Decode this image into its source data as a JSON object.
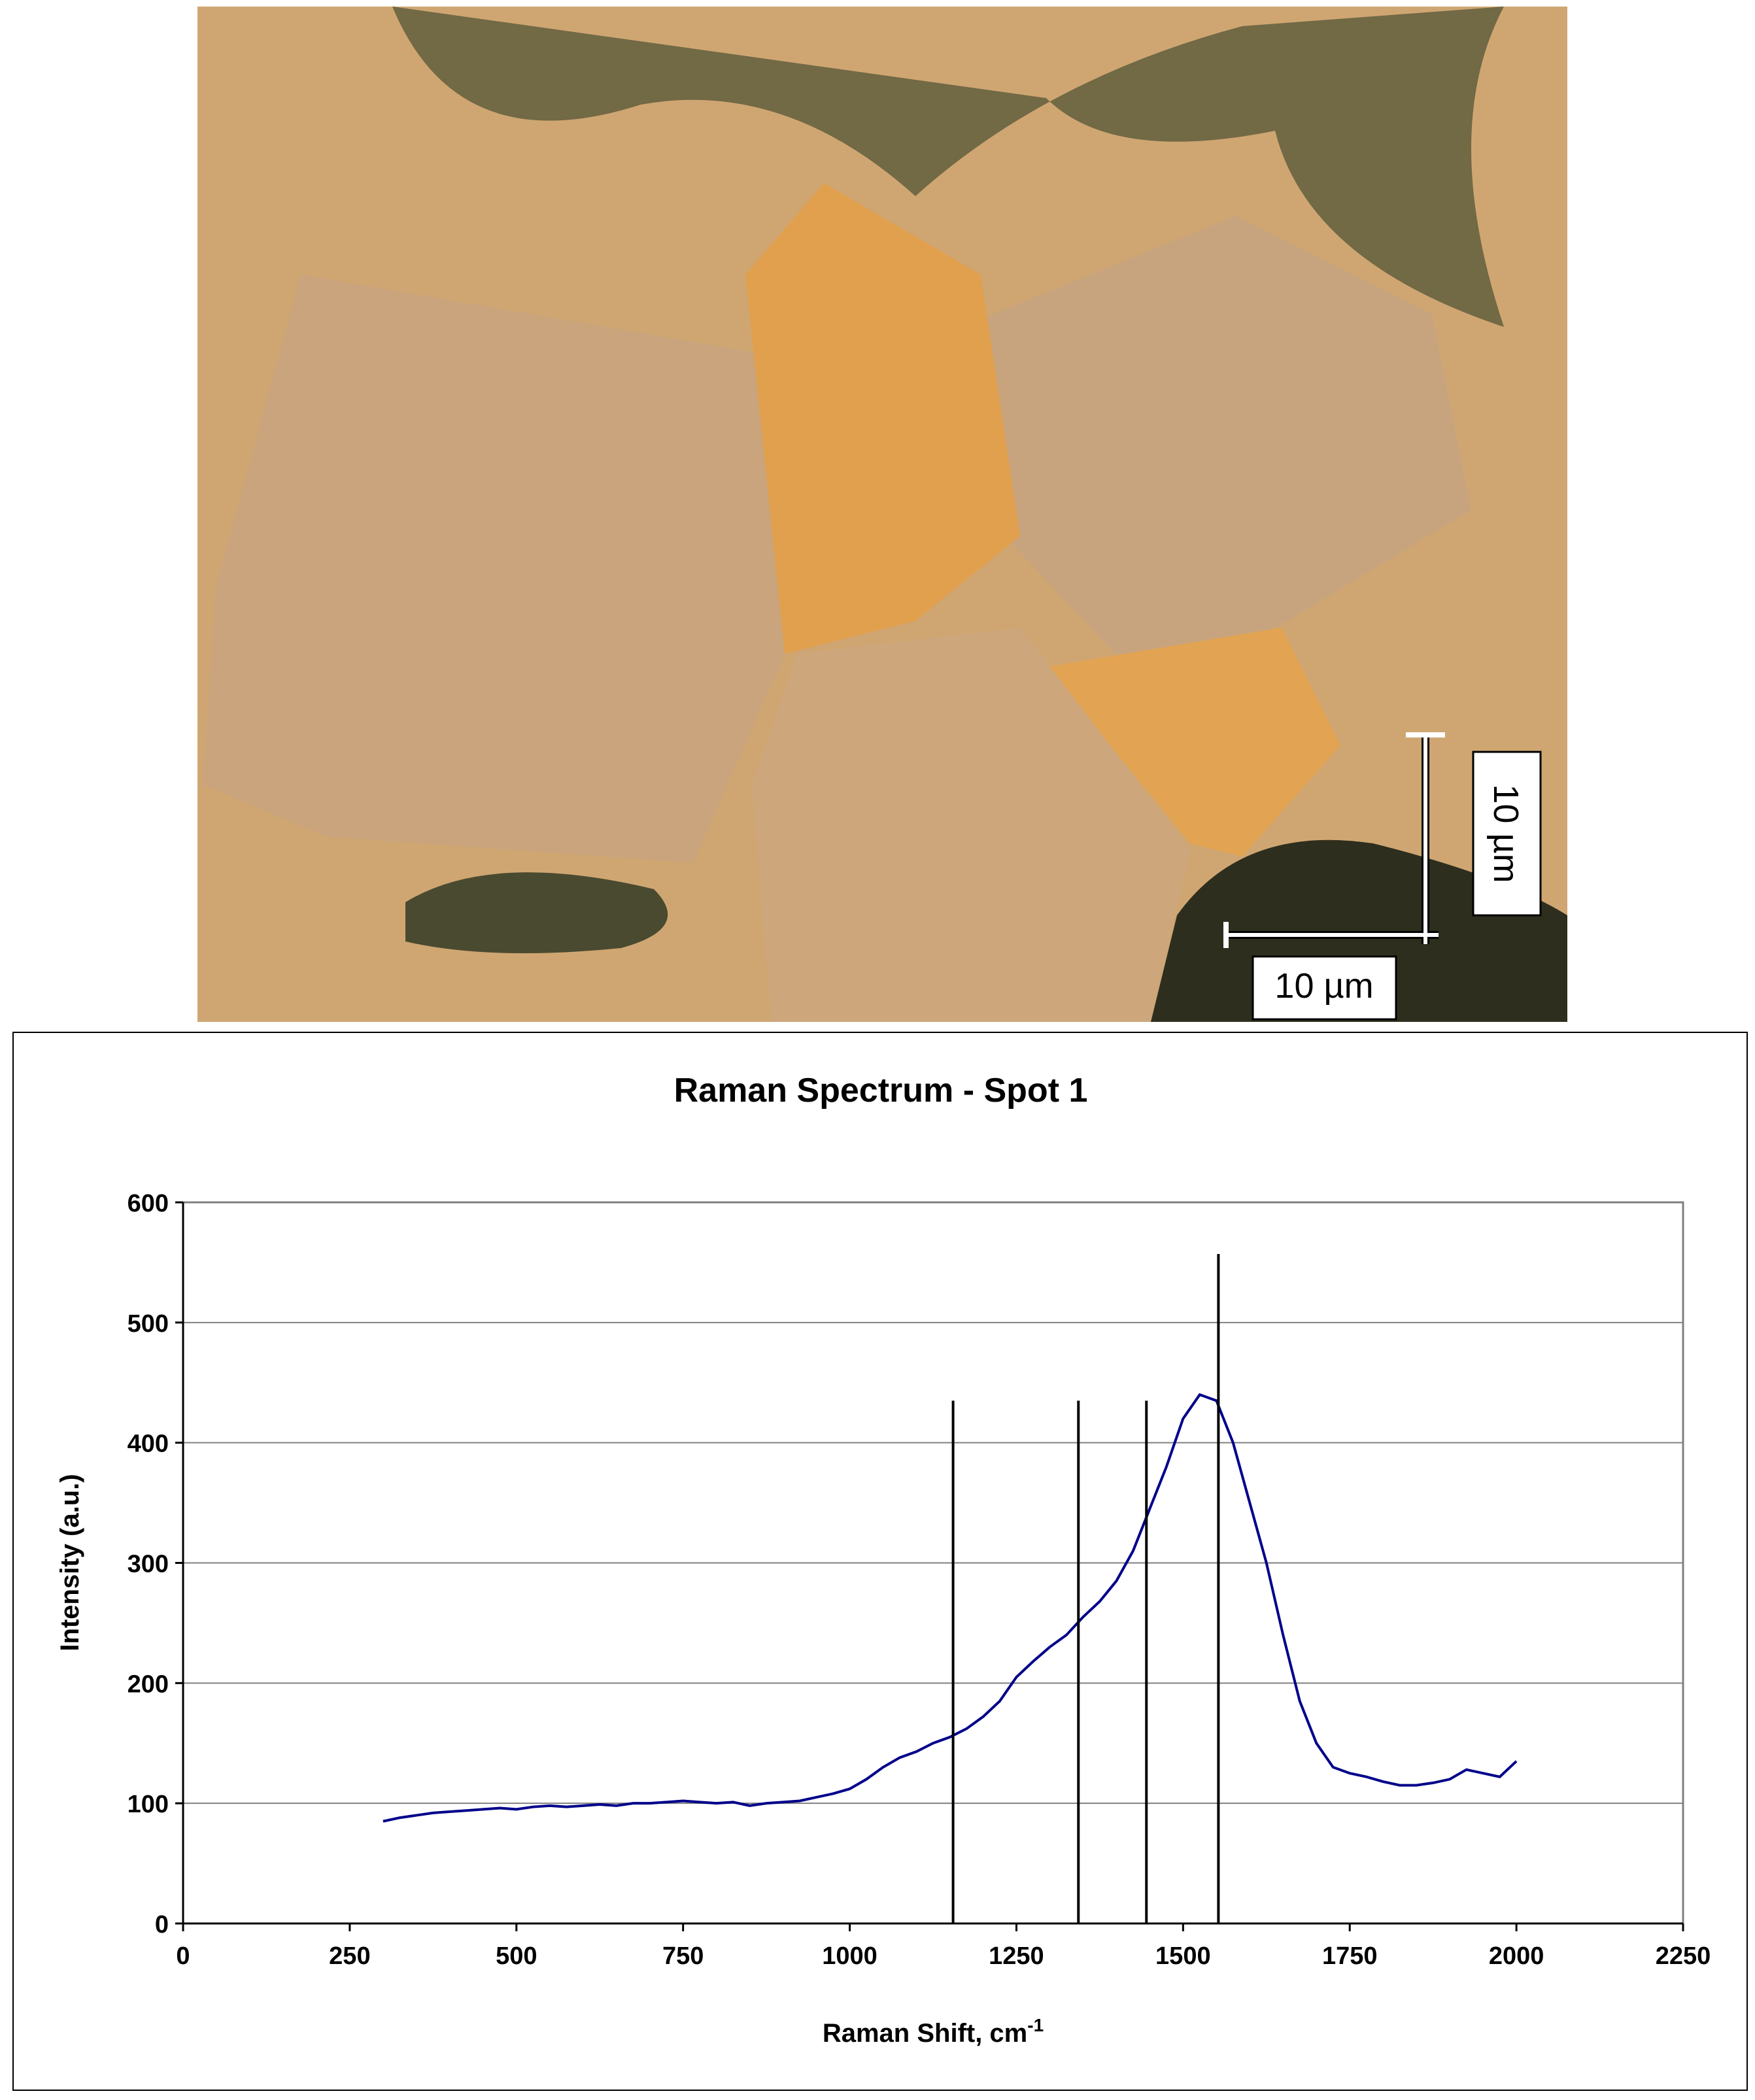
{
  "micrograph": {
    "horizontal_scale_label": "10 µm",
    "vertical_scale_label": "10 µm"
  },
  "chart_data": {
    "type": "line",
    "title": "Raman Spectrum - Spot 1",
    "x_label": "Raman Shift, cm",
    "x_label_sup": "-1",
    "y_label": "Intensity (a.u.)",
    "xlim": [
      0,
      2250
    ],
    "xticks": [
      0,
      250,
      500,
      750,
      1000,
      1250,
      1500,
      1750,
      2000,
      2250
    ],
    "ylim": [
      0,
      600
    ],
    "yticks": [
      0,
      100,
      200,
      300,
      400,
      500,
      600
    ],
    "grid": true,
    "series": [
      {
        "color": "#00008b",
        "x": [
          300,
          325,
          350,
          375,
          400,
          425,
          450,
          475,
          500,
          525,
          550,
          575,
          600,
          625,
          650,
          675,
          700,
          725,
          750,
          775,
          800,
          825,
          850,
          875,
          900,
          925,
          950,
          975,
          1000,
          1025,
          1050,
          1075,
          1100,
          1125,
          1150,
          1175,
          1200,
          1225,
          1250,
          1275,
          1300,
          1325,
          1350,
          1375,
          1400,
          1425,
          1450,
          1475,
          1500,
          1525,
          1550,
          1575,
          1600,
          1625,
          1650,
          1675,
          1700,
          1725,
          1750,
          1775,
          1800,
          1825,
          1850,
          1875,
          1900,
          1925,
          1950,
          1975,
          2000
        ],
        "values": [
          85,
          88,
          90,
          92,
          93,
          94,
          95,
          96,
          95,
          97,
          98,
          97,
          98,
          99,
          98,
          100,
          100,
          101,
          102,
          101,
          100,
          101,
          98,
          100,
          101,
          102,
          105,
          108,
          112,
          120,
          130,
          138,
          143,
          150,
          155,
          162,
          172,
          185,
          205,
          218,
          230,
          240,
          255,
          268,
          285,
          310,
          345,
          380,
          420,
          440,
          435,
          400,
          350,
          300,
          240,
          185,
          150,
          130,
          125,
          122,
          118,
          115,
          115,
          117,
          120,
          128,
          125,
          122,
          135
        ]
      }
    ],
    "peaks": {
      "color": "#000000",
      "x": [
        1155,
        1343,
        1445,
        1553
      ],
      "values": [
        435,
        435,
        435,
        557
      ]
    }
  }
}
